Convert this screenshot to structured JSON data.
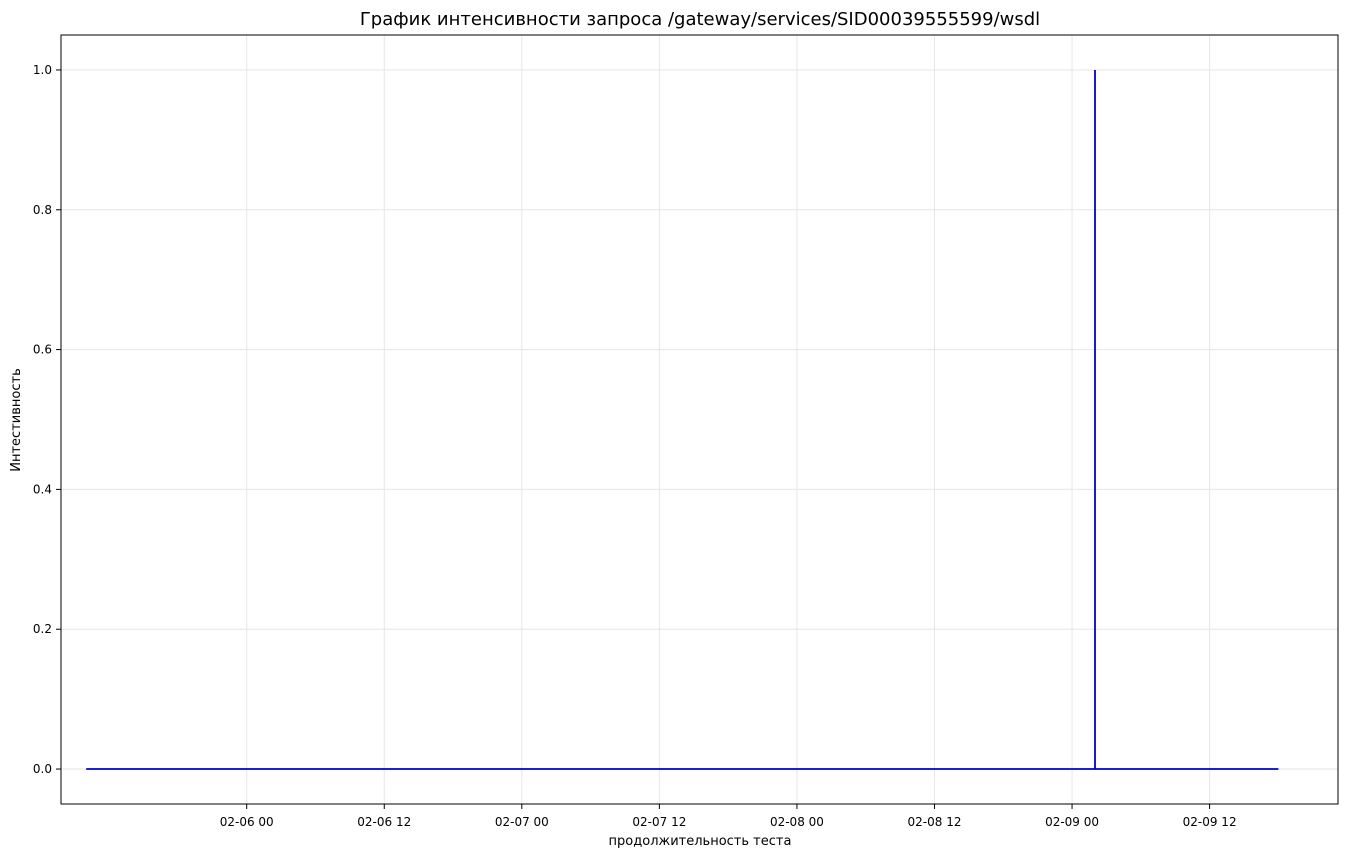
{
  "chart_data": {
    "type": "line",
    "title": "График интенсивности запроса /gateway/services/SID00039555599/wsdl",
    "xlabel": "продолжительность теста",
    "ylabel": "Интестивность",
    "x_ticks": [
      "02-06 00",
      "02-06 12",
      "02-07 00",
      "02-07 12",
      "02-08 00",
      "02-08 12",
      "02-09 00",
      "02-09 12"
    ],
    "y_ticks": [
      "0.0",
      "0.2",
      "0.4",
      "0.6",
      "0.8",
      "1.0"
    ],
    "ylim": [
      -0.05,
      1.05
    ],
    "xlim": [
      "2025-02-05 07:48",
      "2025-02-09 23:12"
    ],
    "grid": true,
    "line_color": "#0000cd",
    "series": [
      {
        "x": [
          "2025-02-05 10:00",
          "2025-02-09 02:00",
          "2025-02-09 02:00",
          "2025-02-09 02:00",
          "2025-02-09 18:00"
        ],
        "values": [
          0,
          0,
          1,
          0,
          0
        ]
      }
    ]
  }
}
